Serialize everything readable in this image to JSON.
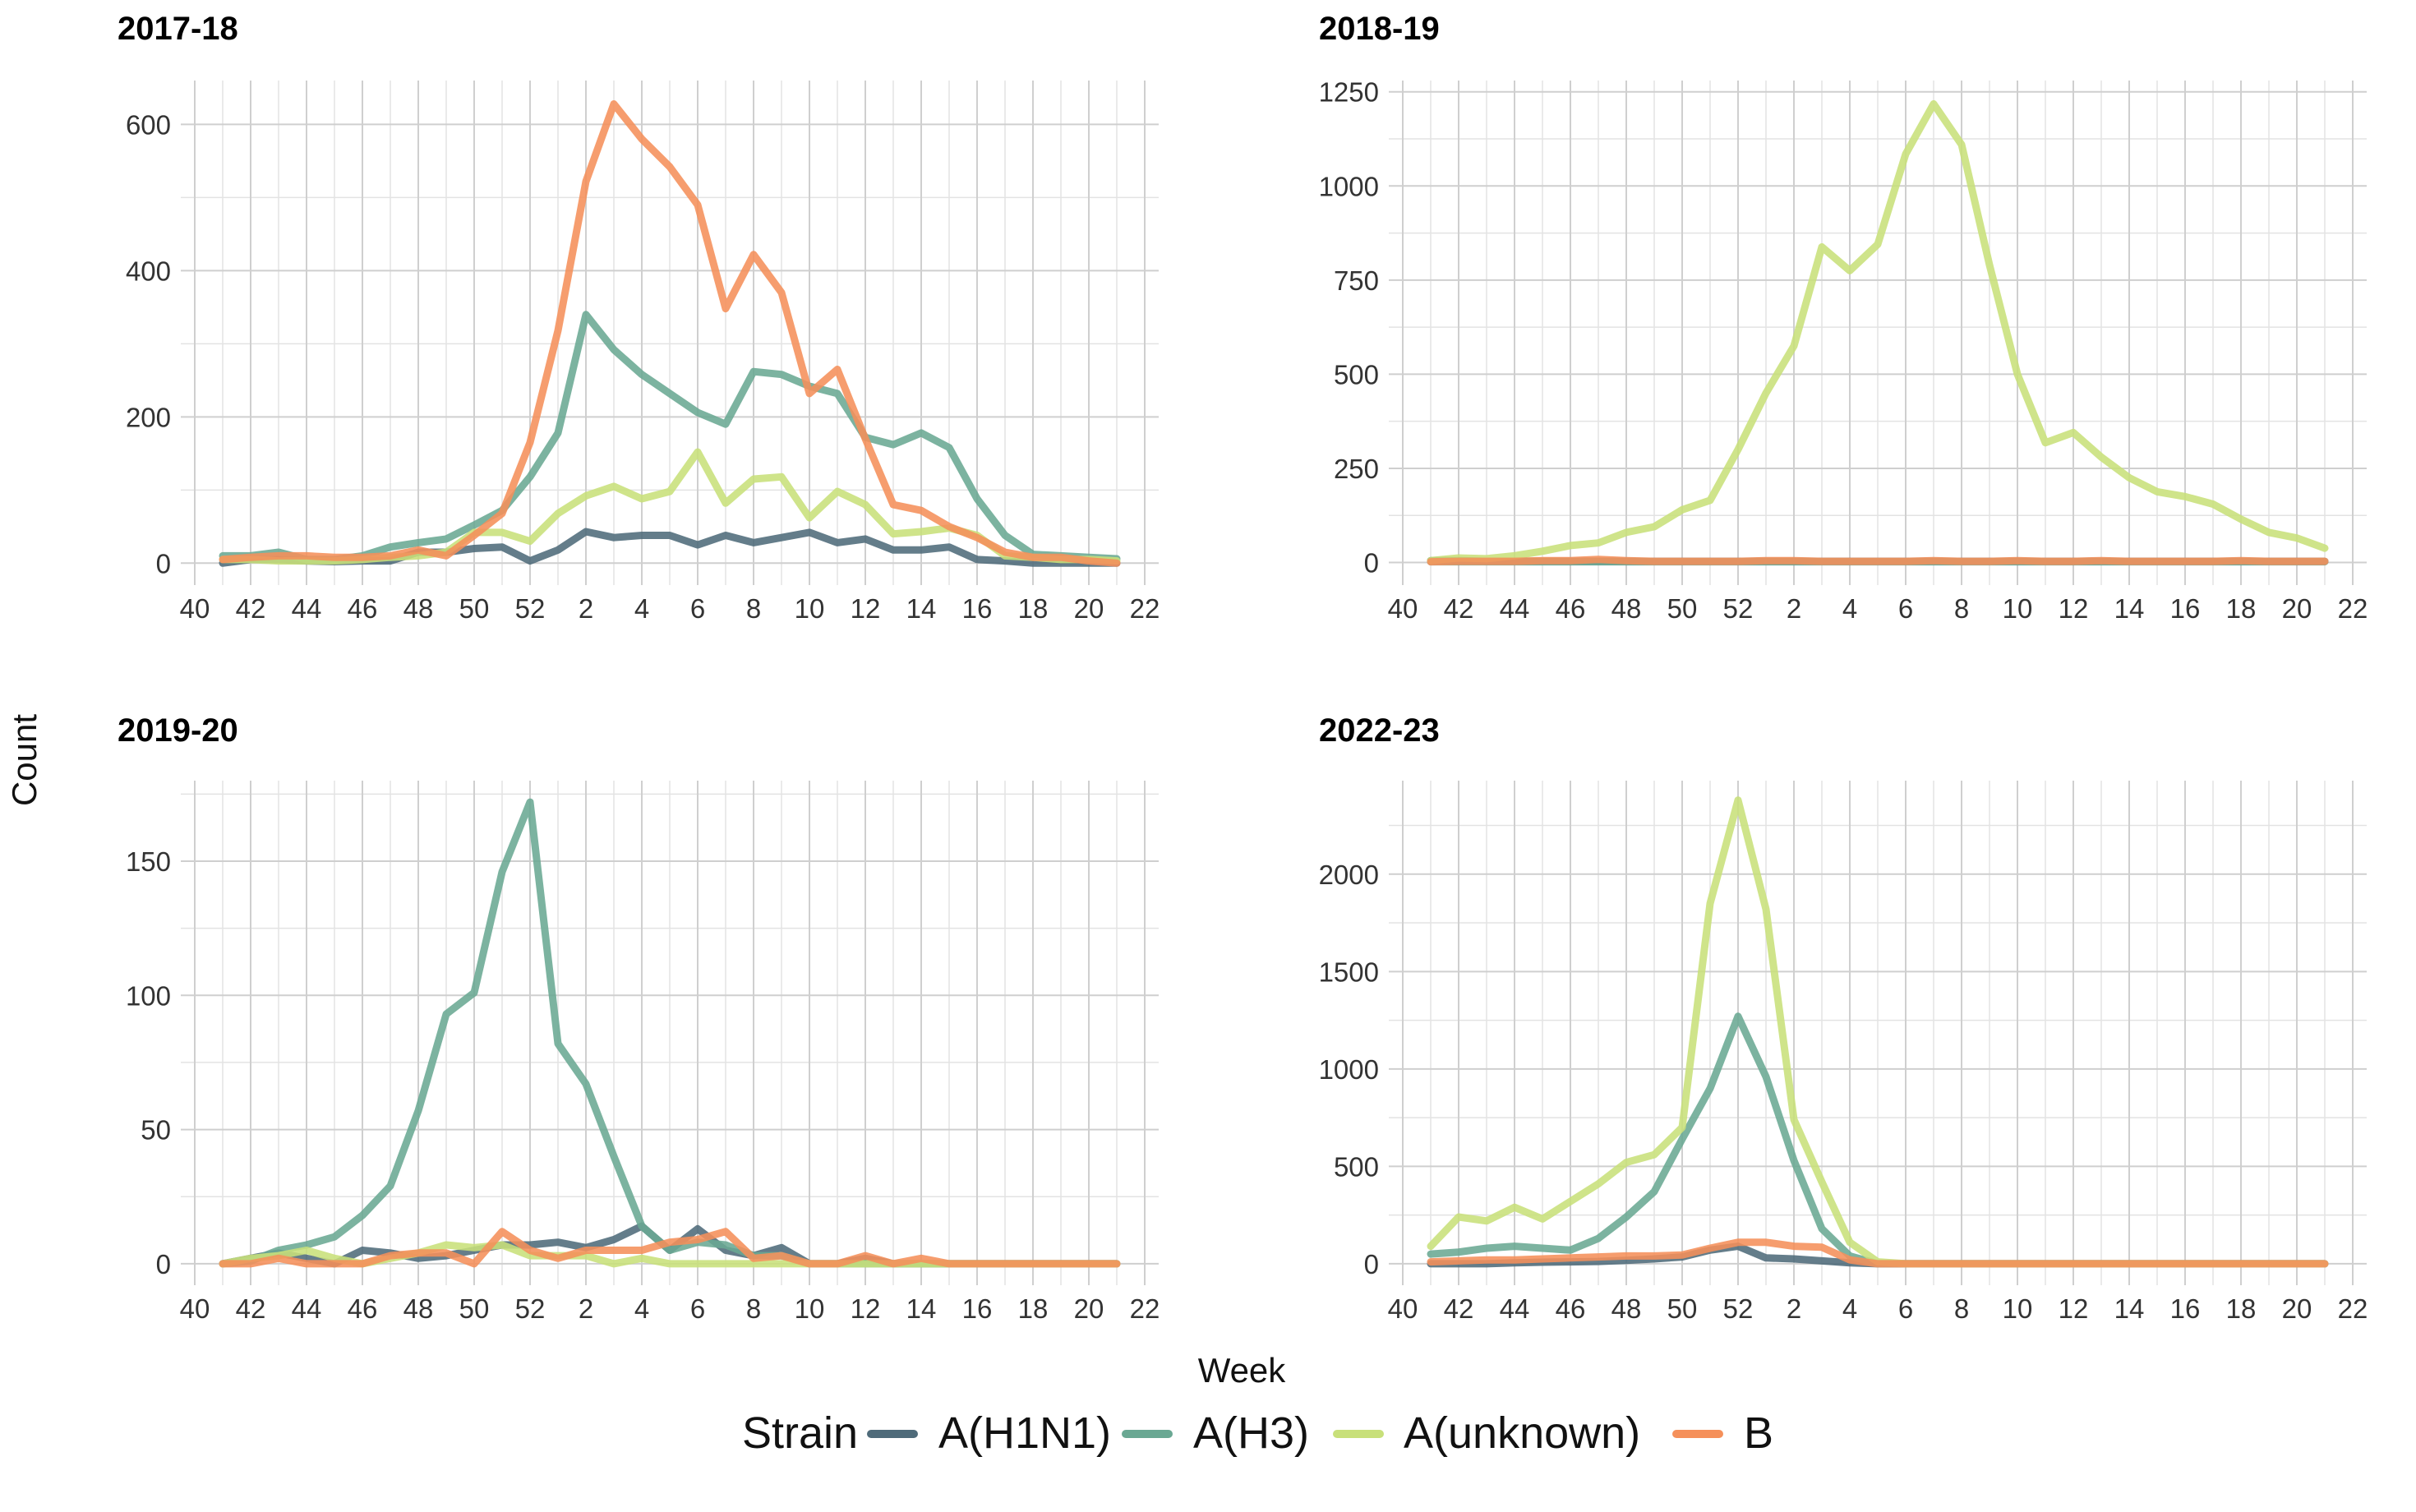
{
  "xlabel": "Week",
  "ylabel": "Count",
  "legend": {
    "title": "Strain",
    "position": "bottom",
    "items": [
      {
        "name": "A(H1N1)",
        "color": "#4f6b7a"
      },
      {
        "name": "A(H3)",
        "color": "#6aa893"
      },
      {
        "name": "A(unknown)",
        "color": "#c8e07a"
      },
      {
        "name": "B",
        "color": "#f5905a"
      }
    ]
  },
  "x_tick_labels": [
    "40",
    "42",
    "44",
    "46",
    "48",
    "50",
    "52",
    "2",
    "4",
    "6",
    "8",
    "10",
    "12",
    "14",
    "16",
    "18",
    "20",
    "22"
  ],
  "chart_data": [
    {
      "type": "line",
      "title": "2017-18",
      "ylim": [
        -30,
        660
      ],
      "yticks": [
        0,
        200,
        400,
        600
      ],
      "grid": true,
      "x": [
        "41",
        "42",
        "43",
        "44",
        "45",
        "46",
        "47",
        "48",
        "49",
        "50",
        "51",
        "52",
        "1",
        "2",
        "3",
        "4",
        "5",
        "6",
        "7",
        "8",
        "9",
        "10",
        "11",
        "12",
        "13",
        "14",
        "15",
        "16",
        "17",
        "18",
        "19",
        "20",
        "21"
      ],
      "series": [
        {
          "name": "A(H1N1)",
          "values": [
            0,
            5,
            5,
            3,
            2,
            3,
            3,
            15,
            15,
            20,
            22,
            3,
            18,
            43,
            35,
            38,
            38,
            25,
            38,
            28,
            35,
            42,
            28,
            33,
            18,
            18,
            22,
            5,
            3,
            0,
            0,
            0,
            0
          ]
        },
        {
          "name": "A(H3)",
          "values": [
            10,
            10,
            15,
            5,
            5,
            10,
            22,
            28,
            33,
            52,
            72,
            118,
            178,
            340,
            292,
            258,
            232,
            206,
            190,
            262,
            258,
            242,
            232,
            172,
            162,
            178,
            158,
            88,
            38,
            12,
            10,
            8,
            6
          ]
        },
        {
          "name": "A(unknown)",
          "values": [
            5,
            5,
            3,
            3,
            3,
            5,
            8,
            10,
            15,
            42,
            42,
            30,
            68,
            92,
            105,
            88,
            98,
            152,
            82,
            115,
            118,
            62,
            98,
            80,
            40,
            43,
            48,
            38,
            10,
            8,
            5,
            5,
            3
          ]
        },
        {
          "name": "B",
          "values": [
            5,
            8,
            10,
            10,
            8,
            8,
            10,
            18,
            10,
            38,
            68,
            165,
            318,
            522,
            628,
            580,
            542,
            490,
            348,
            422,
            370,
            232,
            265,
            170,
            80,
            72,
            50,
            35,
            15,
            8,
            8,
            3,
            0
          ]
        }
      ]
    },
    {
      "type": "line",
      "title": "2018-19",
      "ylim": [
        -60,
        1280
      ],
      "yticks": [
        0,
        250,
        500,
        750,
        1000,
        1250
      ],
      "grid": true,
      "x": [
        "41",
        "42",
        "43",
        "44",
        "45",
        "46",
        "47",
        "48",
        "49",
        "50",
        "51",
        "52",
        "1",
        "2",
        "3",
        "4",
        "5",
        "6",
        "7",
        "8",
        "9",
        "10",
        "11",
        "12",
        "13",
        "14",
        "15",
        "16",
        "17",
        "18",
        "19",
        "20",
        "21"
      ],
      "series": [
        {
          "name": "A(H1N1)",
          "values": [
            5,
            5,
            3,
            3,
            3,
            3,
            3,
            3,
            3,
            3,
            3,
            3,
            3,
            3,
            3,
            3,
            3,
            3,
            3,
            3,
            3,
            3,
            3,
            3,
            3,
            3,
            3,
            3,
            3,
            3,
            3,
            3,
            3
          ]
        },
        {
          "name": "A(H3)",
          "values": [
            2,
            2,
            2,
            2,
            2,
            2,
            2,
            2,
            2,
            2,
            2,
            2,
            2,
            2,
            2,
            2,
            2,
            2,
            2,
            2,
            2,
            2,
            2,
            2,
            2,
            2,
            2,
            2,
            2,
            2,
            2,
            2,
            2
          ]
        },
        {
          "name": "A(unknown)",
          "values": [
            5,
            12,
            10,
            18,
            30,
            45,
            52,
            80,
            95,
            140,
            165,
            300,
            450,
            575,
            838,
            775,
            845,
            1085,
            1218,
            1110,
            790,
            500,
            318,
            345,
            280,
            225,
            188,
            175,
            155,
            115,
            80,
            65,
            38
          ]
        },
        {
          "name": "B",
          "values": [
            2,
            3,
            3,
            3,
            5,
            5,
            8,
            5,
            3,
            3,
            3,
            3,
            5,
            5,
            3,
            3,
            3,
            3,
            5,
            3,
            3,
            5,
            3,
            3,
            5,
            3,
            3,
            3,
            3,
            5,
            3,
            3,
            3
          ]
        }
      ]
    },
    {
      "type": "line",
      "title": "2019-20",
      "ylim": [
        -8,
        180
      ],
      "yticks": [
        0,
        50,
        100,
        150
      ],
      "grid": true,
      "x": [
        "41",
        "42",
        "43",
        "44",
        "45",
        "46",
        "47",
        "48",
        "49",
        "50",
        "51",
        "52",
        "1",
        "2",
        "3",
        "4",
        "5",
        "6",
        "7",
        "8",
        "9",
        "10",
        "11",
        "12",
        "13",
        "14",
        "15",
        "16",
        "17",
        "18",
        "19",
        "20",
        "21"
      ],
      "series": [
        {
          "name": "A(H1N1)",
          "values": [
            0,
            2,
            4,
            2,
            0,
            5,
            4,
            2,
            3,
            5,
            7,
            7,
            8,
            6,
            9,
            14,
            5,
            13,
            5,
            3,
            6,
            0,
            0,
            2,
            0,
            0,
            0,
            0,
            0,
            0,
            0,
            0,
            0
          ]
        },
        {
          "name": "A(H3)",
          "values": [
            0,
            1,
            5,
            7,
            10,
            18,
            29,
            57,
            93,
            101,
            146,
            172,
            82,
            67,
            40,
            14,
            5,
            8,
            7,
            3,
            3,
            0,
            0,
            0,
            0,
            0,
            0,
            0,
            0,
            0,
            0,
            0,
            0
          ]
        },
        {
          "name": "A(unknown)",
          "values": [
            0,
            2,
            3,
            5,
            2,
            0,
            2,
            4,
            7,
            6,
            7,
            3,
            3,
            3,
            0,
            2,
            0,
            0,
            0,
            0,
            0,
            0,
            0,
            0,
            0,
            0,
            0,
            0,
            0,
            0,
            0,
            0,
            0
          ]
        },
        {
          "name": "B",
          "values": [
            0,
            0,
            2,
            0,
            0,
            0,
            3,
            4,
            4,
            0,
            12,
            5,
            2,
            5,
            5,
            5,
            8,
            9,
            12,
            2,
            3,
            0,
            0,
            3,
            0,
            2,
            0,
            0,
            0,
            0,
            0,
            0,
            0
          ]
        }
      ]
    },
    {
      "type": "line",
      "title": "2022-23",
      "ylim": [
        -110,
        2480
      ],
      "yticks": [
        0,
        500,
        1000,
        1500,
        2000
      ],
      "grid": true,
      "x": [
        "41",
        "42",
        "43",
        "44",
        "45",
        "46",
        "47",
        "48",
        "49",
        "50",
        "51",
        "52",
        "1",
        "2",
        "3",
        "4",
        "5",
        "6",
        "7",
        "8",
        "9",
        "10",
        "11",
        "12",
        "13",
        "14",
        "15",
        "16",
        "17",
        "18",
        "19",
        "20",
        "21"
      ],
      "series": [
        {
          "name": "A(H1N1)",
          "values": [
            0,
            0,
            0,
            5,
            8,
            10,
            12,
            18,
            25,
            35,
            70,
            90,
            30,
            25,
            15,
            5,
            0,
            0,
            0,
            0,
            0,
            0,
            0,
            0,
            0,
            0,
            0,
            0,
            0,
            0,
            0,
            0,
            0
          ]
        },
        {
          "name": "A(H3)",
          "values": [
            50,
            60,
            80,
            90,
            80,
            70,
            130,
            240,
            370,
            640,
            900,
            1270,
            960,
            530,
            180,
            40,
            0,
            0,
            0,
            0,
            0,
            0,
            0,
            0,
            0,
            0,
            0,
            0,
            0,
            0,
            0,
            0,
            0
          ]
        },
        {
          "name": "A(unknown)",
          "values": [
            90,
            240,
            220,
            290,
            230,
            320,
            410,
            520,
            560,
            700,
            1850,
            2380,
            1820,
            740,
            420,
            110,
            10,
            0,
            0,
            0,
            0,
            0,
            0,
            0,
            0,
            0,
            0,
            0,
            0,
            0,
            0,
            0,
            0
          ]
        },
        {
          "name": "B",
          "values": [
            10,
            15,
            20,
            20,
            25,
            30,
            35,
            40,
            40,
            45,
            80,
            110,
            110,
            90,
            85,
            20,
            0,
            0,
            0,
            0,
            0,
            0,
            0,
            0,
            0,
            0,
            0,
            0,
            0,
            0,
            0,
            0,
            0
          ]
        }
      ]
    }
  ]
}
